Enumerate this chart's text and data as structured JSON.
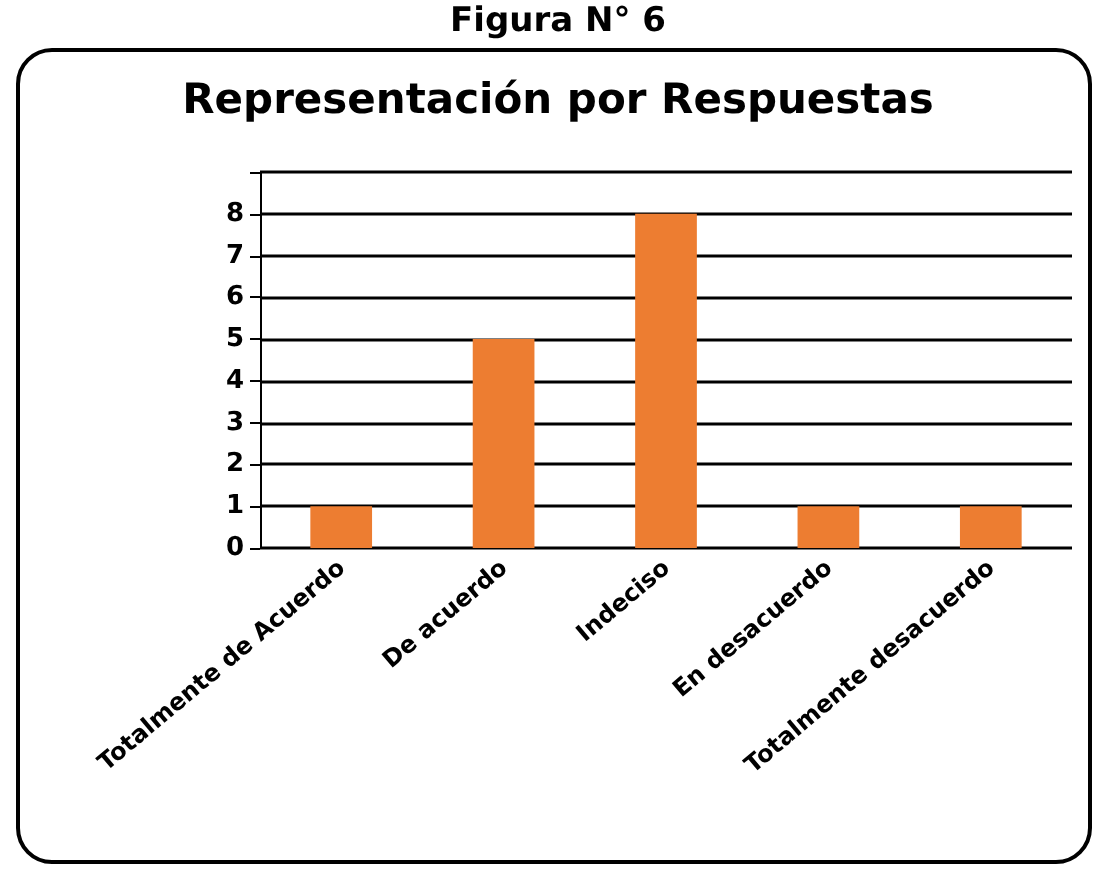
{
  "chart_data": {
    "type": "bar",
    "title": "Representación por Respuestas",
    "annotations": [
      "Figura N° 6"
    ],
    "categories": [
      "Totalmente de Acuerdo",
      "De acuerdo",
      "Indeciso",
      "En desacuerdo",
      "Totalmente desacuerdo"
    ],
    "values": [
      1,
      5,
      8,
      1,
      1
    ],
    "color": "#ed7d31",
    "ylim": [
      0,
      9
    ],
    "yticks": [
      0,
      1,
      2,
      3,
      4,
      5,
      6,
      7,
      8,
      {
        "value": 9,
        "label": null
      }
    ],
    "grid": true
  }
}
